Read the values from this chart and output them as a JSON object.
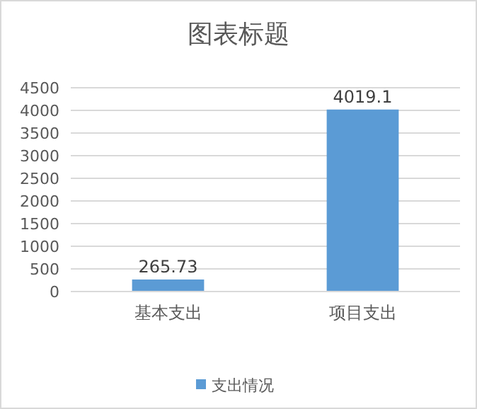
{
  "chart_data": {
    "type": "bar",
    "title": "图表标题",
    "categories": [
      "基本支出",
      "项目支出"
    ],
    "series": [
      {
        "name": "支出情况",
        "color": "#5b9bd5",
        "values": [
          265.73,
          4019.1
        ]
      }
    ],
    "ylim": [
      0,
      4500
    ],
    "yticks": [
      0,
      500,
      1000,
      1500,
      2000,
      2500,
      3000,
      3500,
      4000,
      4500
    ],
    "grid": "y",
    "legend": "bottom",
    "data_labels": true
  }
}
